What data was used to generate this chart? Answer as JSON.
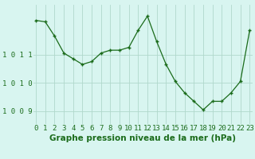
{
  "x": [
    0,
    1,
    2,
    3,
    4,
    5,
    6,
    7,
    8,
    9,
    10,
    11,
    12,
    13,
    14,
    15,
    16,
    17,
    18,
    19,
    20,
    21,
    22,
    23
  ],
  "y": [
    1012.2,
    1012.15,
    1011.65,
    1011.05,
    1010.85,
    1010.65,
    1010.75,
    1011.05,
    1011.15,
    1011.15,
    1011.25,
    1011.85,
    1012.35,
    1011.45,
    1010.65,
    1010.05,
    1009.65,
    1009.35,
    1009.05,
    1009.35,
    1009.35,
    1009.65,
    1010.05,
    1011.85
  ],
  "line_color": "#1a6b1a",
  "marker_color": "#1a6b1a",
  "bg_color": "#d8f5f0",
  "plot_bg_color": "#d8f5f0",
  "grid_color": "#b0d8cc",
  "bottom_bar_color": "#2d6b2d",
  "ylabel_ticks": [
    1009,
    1010,
    1011
  ],
  "ylabel_labels": [
    "1 0 0 9",
    "1 0 1 0",
    "1 0 1 1"
  ],
  "xlabel": "Graphe pression niveau de la mer (hPa)",
  "ylim_min": 1008.55,
  "ylim_max": 1012.75,
  "xlim_min": -0.3,
  "xlim_max": 23.3,
  "tick_fontsize": 6.5,
  "label_fontsize": 7.5
}
